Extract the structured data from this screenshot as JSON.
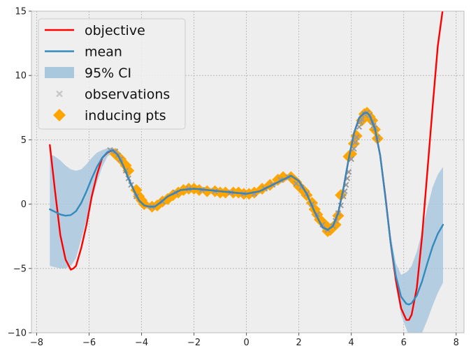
{
  "chart_data": {
    "type": "line",
    "title": "",
    "xlabel": "",
    "ylabel": "",
    "xlim": [
      -8.2,
      8.3
    ],
    "ylim": [
      -10,
      15
    ],
    "xticks": [
      -8,
      -6,
      -4,
      -2,
      0,
      2,
      4,
      6,
      8
    ],
    "yticks": [
      -10,
      -5,
      0,
      5,
      10,
      15
    ],
    "grid": true,
    "legend_position": "top-left",
    "colors": {
      "objective": "#ff0000",
      "mean": "#348abd",
      "ci": "#a9c7dd",
      "observations": "#c8c8c8",
      "inducing": "#ffa500",
      "background": "#eeeeee",
      "grid": "#b0b0b0"
    },
    "legend": [
      {
        "key": "objective",
        "label": "objective",
        "symbol": "line"
      },
      {
        "key": "mean",
        "label": "mean",
        "symbol": "line"
      },
      {
        "key": "ci",
        "label": "95% CI",
        "symbol": "band"
      },
      {
        "key": "observations",
        "label": "observations",
        "symbol": "cross"
      },
      {
        "key": "inducing",
        "label": "inducing pts",
        "symbol": "diamond"
      }
    ],
    "series": [
      {
        "name": "objective",
        "x": [
          -7.5,
          -7.3,
          -7.1,
          -6.9,
          -6.7,
          -6.6,
          -6.5,
          -6.3,
          -6.1,
          -5.9,
          -5.7,
          -5.5,
          -5.3,
          -5.1,
          -4.9,
          -4.7,
          -4.5,
          -4.3,
          -4.1,
          -3.9,
          -3.7,
          -3.5,
          -3.3,
          -3.0,
          -2.5,
          -2.0,
          -1.5,
          -1.0,
          -0.5,
          0.0,
          0.5,
          1.0,
          1.5,
          1.7,
          2.0,
          2.3,
          2.6,
          2.9,
          3.1,
          3.3,
          3.5,
          3.7,
          3.9,
          4.1,
          4.3,
          4.5,
          4.6,
          4.7,
          4.9,
          5.1,
          5.3,
          5.5,
          5.7,
          5.9,
          6.1,
          6.2,
          6.3,
          6.5,
          6.7,
          6.9,
          7.1,
          7.3,
          7.5
        ],
        "y": [
          4.6,
          1.0,
          -2.4,
          -4.3,
          -5.1,
          -5.0,
          -4.8,
          -3.4,
          -1.6,
          0.6,
          2.3,
          3.6,
          4.0,
          4.2,
          3.8,
          3.0,
          2.0,
          1.1,
          0.3,
          -0.1,
          -0.2,
          -0.2,
          0.1,
          0.6,
          1.1,
          1.2,
          1.1,
          1.0,
          0.9,
          0.8,
          1.0,
          1.5,
          2.0,
          2.2,
          1.8,
          0.8,
          -0.6,
          -1.8,
          -2.0,
          -1.7,
          -0.7,
          1.2,
          3.5,
          5.5,
          6.7,
          7.1,
          7.1,
          6.9,
          5.9,
          3.8,
          0.6,
          -3.0,
          -5.9,
          -8.1,
          -9.0,
          -9.0,
          -8.6,
          -6.5,
          -2.5,
          2.5,
          7.5,
          12.3,
          15.3
        ]
      },
      {
        "name": "mean",
        "x": [
          -7.5,
          -7.3,
          -7.1,
          -6.9,
          -6.7,
          -6.5,
          -6.3,
          -6.1,
          -5.9,
          -5.7,
          -5.5,
          -5.3,
          -5.1,
          -4.9,
          -4.7,
          -4.5,
          -4.3,
          -4.1,
          -3.9,
          -3.7,
          -3.5,
          -3.3,
          -3.0,
          -2.5,
          -2.0,
          -1.5,
          -1.0,
          -0.5,
          0.0,
          0.5,
          1.0,
          1.5,
          1.7,
          2.0,
          2.3,
          2.6,
          2.9,
          3.1,
          3.3,
          3.5,
          3.7,
          3.9,
          4.1,
          4.3,
          4.5,
          4.6,
          4.7,
          4.9,
          5.1,
          5.3,
          5.5,
          5.7,
          5.9,
          6.1,
          6.2,
          6.3,
          6.5,
          6.7,
          6.9,
          7.1,
          7.3,
          7.5
        ],
        "y": [
          -0.4,
          -0.6,
          -0.8,
          -0.9,
          -0.85,
          -0.55,
          0.1,
          1.0,
          2.0,
          2.9,
          3.6,
          4.05,
          4.2,
          3.8,
          3.0,
          2.0,
          1.1,
          0.3,
          -0.1,
          -0.2,
          -0.2,
          0.1,
          0.6,
          1.1,
          1.2,
          1.1,
          1.0,
          0.9,
          0.8,
          1.0,
          1.5,
          2.0,
          2.2,
          1.8,
          0.8,
          -0.6,
          -1.8,
          -2.0,
          -1.7,
          -0.7,
          1.2,
          3.5,
          5.5,
          6.7,
          7.1,
          7.1,
          6.9,
          5.9,
          3.8,
          0.5,
          -3.0,
          -5.6,
          -7.2,
          -7.75,
          -7.8,
          -7.7,
          -7.1,
          -6.0,
          -4.6,
          -3.3,
          -2.3,
          -1.6
        ]
      }
    ],
    "ci_band": {
      "x": [
        -7.5,
        -7.3,
        -7.1,
        -6.9,
        -6.7,
        -6.5,
        -6.3,
        -6.1,
        -5.9,
        -5.7,
        -5.5,
        -5.3,
        -5.1,
        -4.9,
        -4.7,
        -4.5,
        -4.3,
        -4.1,
        -3.9,
        -3.7,
        -3.5,
        -3.3,
        -3.0,
        -2.5,
        -2.0,
        -1.5,
        -1.0,
        -0.5,
        0.0,
        0.5,
        1.0,
        1.5,
        1.7,
        2.0,
        2.3,
        2.6,
        2.9,
        3.1,
        3.3,
        3.5,
        3.7,
        3.9,
        4.1,
        4.3,
        4.5,
        4.6,
        4.7,
        4.9,
        5.1,
        5.3,
        5.5,
        5.7,
        5.9,
        6.1,
        6.2,
        6.3,
        6.5,
        6.7,
        6.9,
        7.1,
        7.3,
        7.5
      ],
      "upper": [
        3.9,
        3.7,
        3.4,
        3.0,
        2.7,
        2.6,
        2.7,
        3.1,
        3.6,
        4.0,
        4.2,
        4.35,
        4.4,
        4.0,
        3.2,
        2.2,
        1.3,
        0.5,
        0.1,
        0.0,
        0.0,
        0.3,
        0.8,
        1.3,
        1.4,
        1.3,
        1.2,
        1.1,
        1.0,
        1.2,
        1.7,
        2.2,
        2.4,
        2.0,
        1.0,
        -0.4,
        -1.6,
        -1.8,
        -1.5,
        -0.5,
        1.4,
        3.7,
        5.7,
        6.9,
        7.3,
        7.3,
        7.1,
        6.1,
        4.0,
        0.9,
        -2.4,
        -4.6,
        -5.5,
        -5.3,
        -5.1,
        -4.8,
        -3.7,
        -2.1,
        -0.3,
        1.3,
        2.3,
        2.9
      ],
      "lower": [
        -4.8,
        -4.9,
        -5.0,
        -5.0,
        -4.8,
        -4.2,
        -2.7,
        -1.2,
        0.3,
        1.7,
        2.9,
        3.7,
        4.0,
        3.6,
        2.8,
        1.8,
        0.9,
        0.1,
        -0.3,
        -0.4,
        -0.4,
        -0.1,
        0.4,
        0.9,
        1.0,
        0.9,
        0.8,
        0.7,
        0.6,
        0.8,
        1.3,
        1.8,
        2.0,
        1.6,
        0.6,
        -0.8,
        -2.0,
        -2.2,
        -1.9,
        -0.9,
        1.0,
        3.3,
        5.3,
        6.5,
        6.9,
        6.9,
        6.7,
        5.7,
        3.6,
        0.1,
        -3.6,
        -6.5,
        -8.6,
        -9.7,
        -10.2,
        -10.3,
        -10.2,
        -10.0,
        -9.0,
        -7.9,
        -6.9,
        -6.1
      ]
    },
    "observations": {
      "x": [
        -5.2,
        -5.0,
        -4.9,
        -4.8,
        -4.6,
        -4.5,
        -4.4,
        -4.2,
        -3.6,
        -3.2,
        -2.7,
        -2.2,
        -1.7,
        -1.2,
        -0.6,
        -0.1,
        0.3,
        0.7,
        1.0,
        1.3,
        1.6,
        1.9,
        2.1,
        2.3,
        2.5,
        2.7,
        2.9,
        3.1,
        3.3,
        3.4,
        3.5,
        3.6,
        3.7,
        3.75,
        3.8,
        3.85,
        3.9,
        4.0,
        4.1,
        4.15,
        4.2,
        4.3,
        4.35,
        4.4,
        4.5,
        4.6,
        4.7,
        4.8,
        4.85,
        4.9,
        5.0
      ],
      "y": [
        4.2,
        4.1,
        3.8,
        3.5,
        2.6,
        2.0,
        1.5,
        0.6,
        -0.2,
        0.2,
        0.9,
        1.2,
        1.1,
        1.0,
        0.9,
        0.8,
        0.8,
        1.2,
        1.5,
        1.9,
        2.1,
        1.6,
        1.3,
        0.8,
        0.0,
        -0.8,
        -1.6,
        -2.0,
        -1.7,
        -1.3,
        -0.7,
        -0.1,
        0.6,
        1.0,
        1.5,
        2.0,
        2.5,
        3.5,
        4.3,
        4.8,
        5.2,
        6.0,
        6.4,
        6.6,
        7.0,
        7.1,
        6.9,
        6.4,
        6.1,
        5.9,
        5.2
      ]
    },
    "inducing_points": {
      "x": [
        -5.0,
        -4.8,
        -4.6,
        -4.5,
        -4.2,
        -4.1,
        -4.0,
        -3.9,
        -3.6,
        -3.4,
        -3.2,
        -3.0,
        -2.8,
        -2.6,
        -2.4,
        -2.2,
        -2.0,
        -1.8,
        -1.5,
        -1.2,
        -1.0,
        -0.8,
        -0.5,
        -0.3,
        -0.1,
        0.1,
        0.3,
        0.6,
        0.9,
        1.2,
        1.4,
        1.7,
        1.9,
        2.0,
        2.2,
        2.3,
        2.5,
        2.6,
        2.7,
        2.8,
        3.0,
        3.1,
        3.2,
        3.4,
        3.5,
        3.6,
        3.9,
        4.0,
        4.1,
        4.2,
        4.4,
        4.5,
        4.6,
        4.7,
        4.8,
        4.9,
        5.0
      ],
      "y": [
        3.9,
        3.5,
        3.0,
        2.6,
        1.1,
        0.6,
        0.3,
        0.0,
        -0.2,
        -0.1,
        0.2,
        0.4,
        0.7,
        0.9,
        1.1,
        1.2,
        1.2,
        1.1,
        1.0,
        1.0,
        0.9,
        0.9,
        0.9,
        0.9,
        0.8,
        0.8,
        0.9,
        1.2,
        1.5,
        1.9,
        2.1,
        2.1,
        1.7,
        1.4,
        1.0,
        0.7,
        0.1,
        -0.4,
        -0.8,
        -1.2,
        -1.6,
        -2.1,
        -2.0,
        -1.6,
        -0.9,
        0.7,
        3.7,
        3.9,
        4.7,
        5.3,
        6.5,
        7.0,
        7.1,
        6.8,
        6.5,
        5.8,
        5.1
      ]
    }
  }
}
